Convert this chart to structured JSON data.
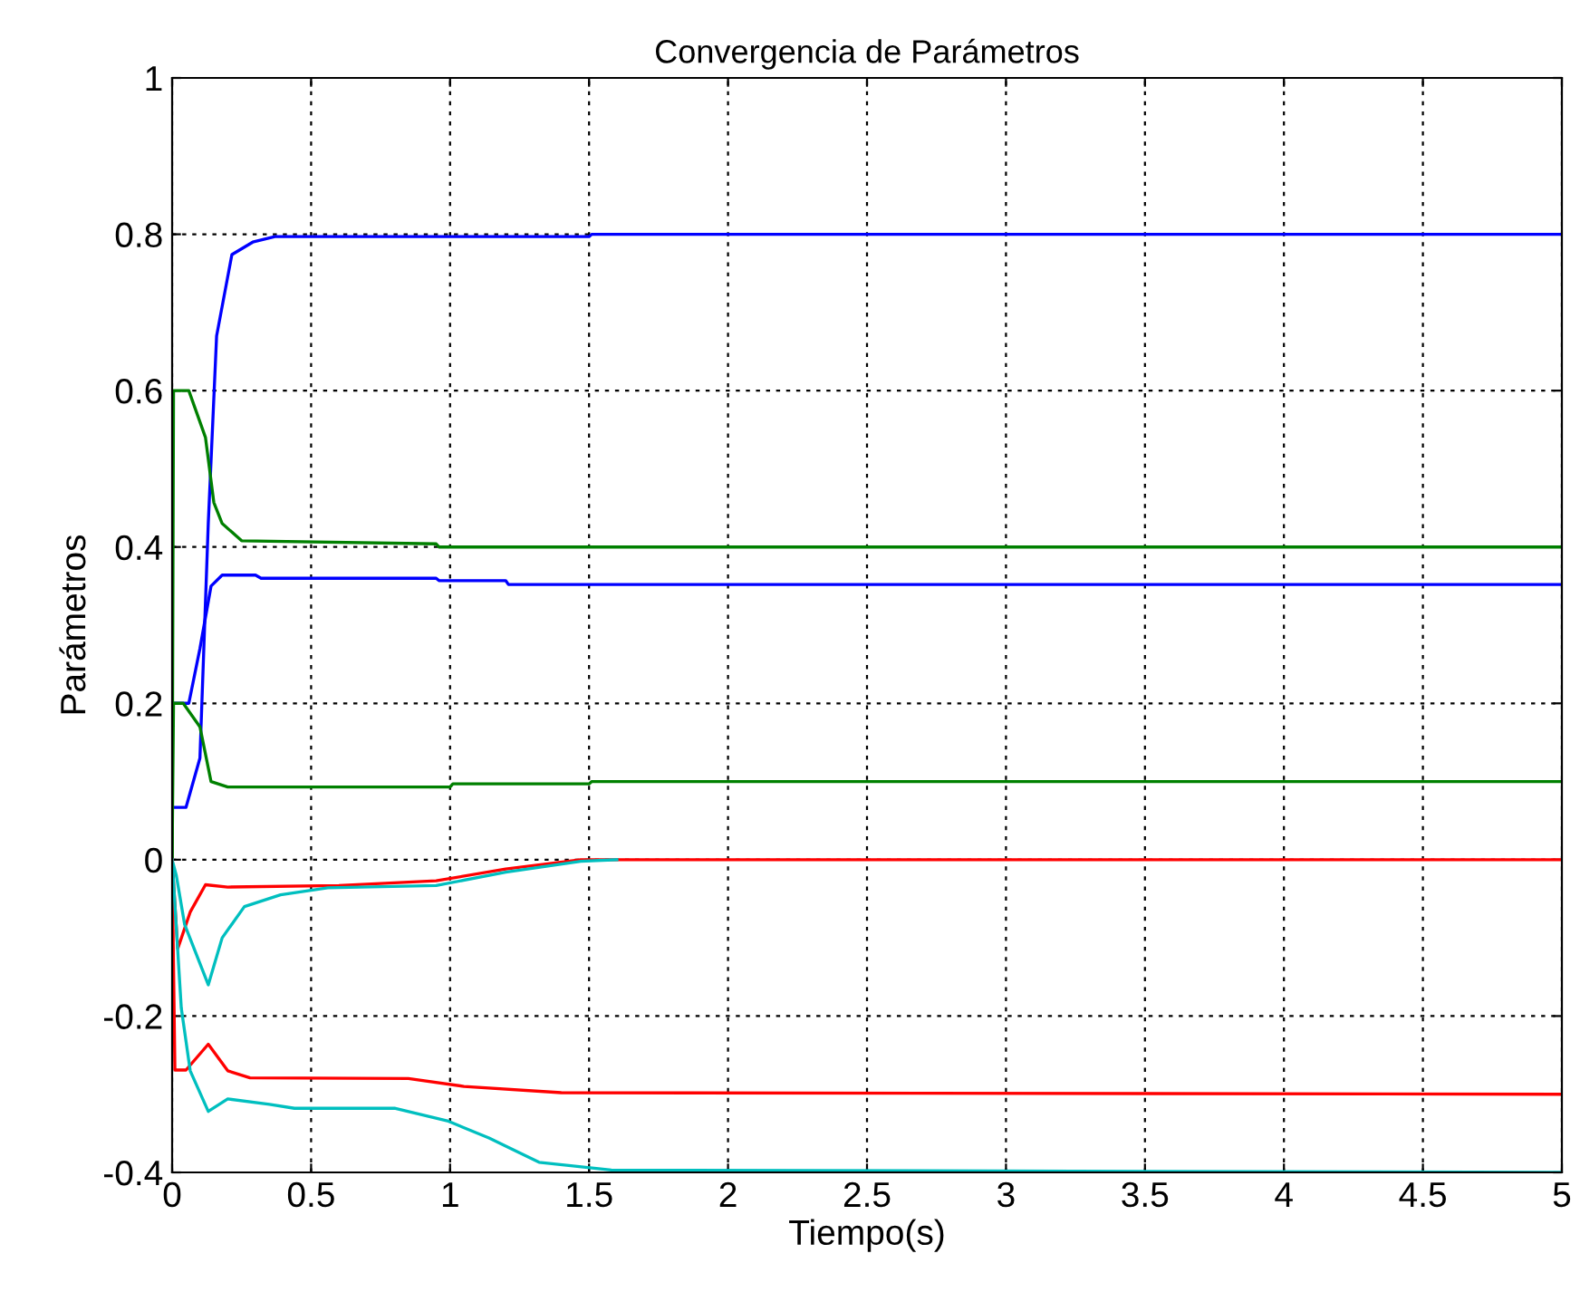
{
  "chart_data": {
    "type": "line",
    "title": "Convergencia de Parámetros",
    "xlabel": "Tiempo(s)",
    "ylabel": "Parámetros",
    "xlim": [
      0,
      5
    ],
    "ylim": [
      -0.4,
      1
    ],
    "xticks": [
      0,
      0.5,
      1,
      1.5,
      2,
      2.5,
      3,
      3.5,
      4,
      4.5,
      5
    ],
    "yticks": [
      -0.4,
      -0.2,
      0,
      0.2,
      0.4,
      0.6,
      0.8,
      1
    ],
    "grid": true,
    "legend": false,
    "marker": "none",
    "line_style": "solid",
    "series": [
      {
        "color": "#0000ff",
        "x": [
          0,
          0.05,
          0.1,
          0.13,
          0.16,
          0.215,
          0.29,
          0.37,
          1.5,
          1.51,
          5
        ],
        "values": [
          0.067,
          0.067,
          0.13,
          0.43,
          0.67,
          0.774,
          0.79,
          0.797,
          0.797,
          0.8,
          0.8
        ]
      },
      {
        "color": "#0000ff",
        "x": [
          0,
          0.06,
          0.1,
          0.14,
          0.18,
          0.3,
          0.32,
          0.95,
          0.96,
          1.2,
          1.21,
          5
        ],
        "values": [
          0.2,
          0.2,
          0.27,
          0.35,
          0.364,
          0.364,
          0.36,
          0.36,
          0.357,
          0.357,
          0.352,
          0.352
        ]
      },
      {
        "color": "#008000",
        "x": [
          0,
          0.005,
          0.06,
          0.12,
          0.15,
          0.18,
          0.25,
          0.95,
          0.96,
          5
        ],
        "values": [
          0,
          0.6,
          0.6,
          0.54,
          0.457,
          0.43,
          0.408,
          0.404,
          0.4,
          0.4
        ]
      },
      {
        "color": "#008000",
        "x": [
          0,
          0.005,
          0.04,
          0.1,
          0.14,
          0.2,
          1.0,
          1.01,
          1.5,
          1.51,
          5
        ],
        "values": [
          0,
          0.2,
          0.2,
          0.17,
          0.1,
          0.093,
          0.093,
          0.097,
          0.097,
          0.1,
          0.1
        ]
      },
      {
        "color": "#ff0000",
        "x": [
          0,
          0.02,
          0.065,
          0.12,
          0.2,
          0.6,
          0.95,
          1.2,
          1.47,
          5
        ],
        "values": [
          0,
          -0.114,
          -0.067,
          -0.032,
          -0.035,
          -0.033,
          -0.027,
          -0.012,
          0,
          0
        ]
      },
      {
        "color": "#00bfbf",
        "x": [
          0,
          0.015,
          0.045,
          0.13,
          0.18,
          0.26,
          0.39,
          0.56,
          0.95,
          1.2,
          1.47,
          1.6
        ],
        "values": [
          0,
          -0.02,
          -0.083,
          -0.16,
          -0.1,
          -0.06,
          -0.045,
          -0.036,
          -0.033,
          -0.016,
          -0.002,
          0
        ]
      },
      {
        "color": "#ff0000",
        "x": [
          0,
          0.01,
          0.05,
          0.13,
          0.2,
          0.28,
          0.85,
          1.05,
          1.4,
          5
        ],
        "values": [
          0,
          -0.269,
          -0.269,
          -0.236,
          -0.27,
          -0.279,
          -0.28,
          -0.29,
          -0.298,
          -0.3
        ]
      },
      {
        "color": "#00bfbf",
        "x": [
          0,
          0.033,
          0.065,
          0.13,
          0.2,
          0.35,
          0.44,
          0.8,
          0.99,
          1.14,
          1.32,
          1.58,
          5
        ],
        "values": [
          0,
          -0.19,
          -0.27,
          -0.322,
          -0.306,
          -0.313,
          -0.318,
          -0.318,
          -0.334,
          -0.356,
          -0.387,
          -0.397,
          -0.4
        ]
      }
    ]
  }
}
